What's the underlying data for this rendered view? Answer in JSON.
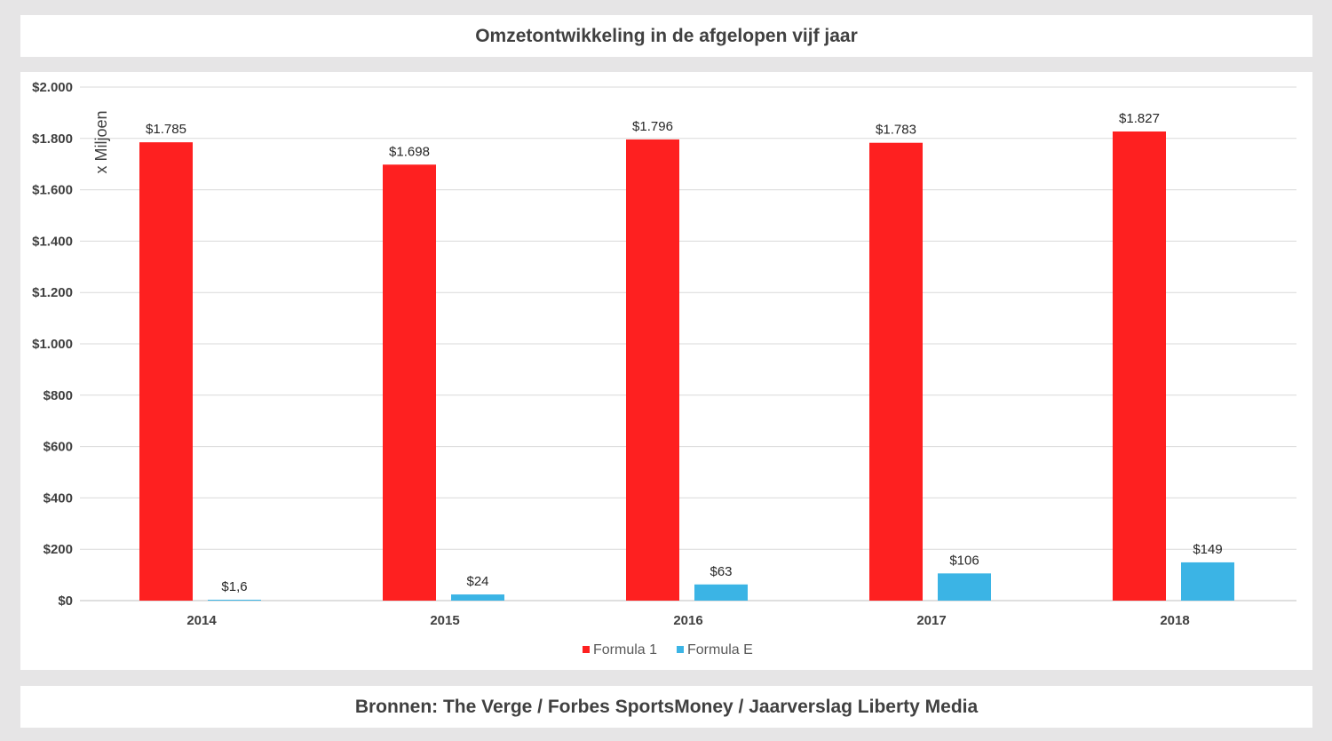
{
  "title": "Omzetontwikkeling in de afgelopen vijf jaar",
  "source": "Bronnen: The Verge / Forbes SportsMoney / Jaarverslag Liberty Media",
  "chart_data": {
    "type": "bar",
    "categories": [
      "2014",
      "2015",
      "2016",
      "2017",
      "2018"
    ],
    "series": [
      {
        "name": "Formula 1",
        "color": "#fe2020",
        "values": [
          1785,
          1698,
          1796,
          1783,
          1827
        ],
        "labels": [
          "$1.785",
          "$1.698",
          "$1.796",
          "$1.783",
          "$1.827"
        ]
      },
      {
        "name": "Formula E",
        "color": "#3bb4e5",
        "values": [
          1.6,
          24,
          63,
          106,
          149
        ],
        "labels": [
          "$1,6",
          "$24",
          "$63",
          "$106",
          "$149"
        ]
      }
    ],
    "ylim": [
      0,
      2000
    ],
    "yticks": [
      0,
      200,
      400,
      600,
      800,
      1000,
      1200,
      1400,
      1600,
      1800,
      2000
    ],
    "ytick_labels": [
      "$0",
      "$200",
      "$400",
      "$600",
      "$800",
      "$1.000",
      "$1.200",
      "$1.400",
      "$1.600",
      "$1.800",
      "$2.000"
    ],
    "ylabel": "x Miljoen",
    "xlabel": "",
    "grid": true,
    "legend": "bottom"
  }
}
